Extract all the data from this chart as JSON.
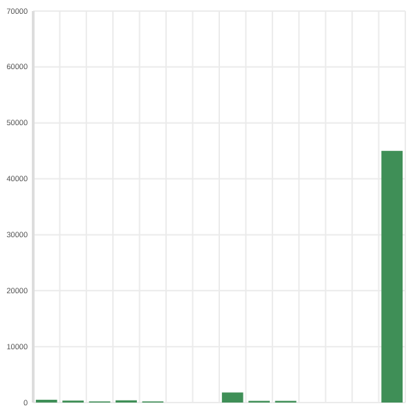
{
  "chart_data": {
    "type": "bar",
    "categories": [
      null,
      null,
      null,
      null,
      null,
      null,
      null,
      null,
      null,
      null,
      null,
      null,
      null,
      null
    ],
    "values": [
      500,
      350,
      200,
      400,
      200,
      0,
      0,
      1800,
      300,
      300,
      0,
      0,
      0,
      45000
    ],
    "color": "#3f8f57",
    "ylim": [
      0,
      70000
    ],
    "yticks": [
      0,
      10000,
      20000,
      30000,
      40000,
      50000,
      60000,
      70000
    ],
    "grid": true
  }
}
